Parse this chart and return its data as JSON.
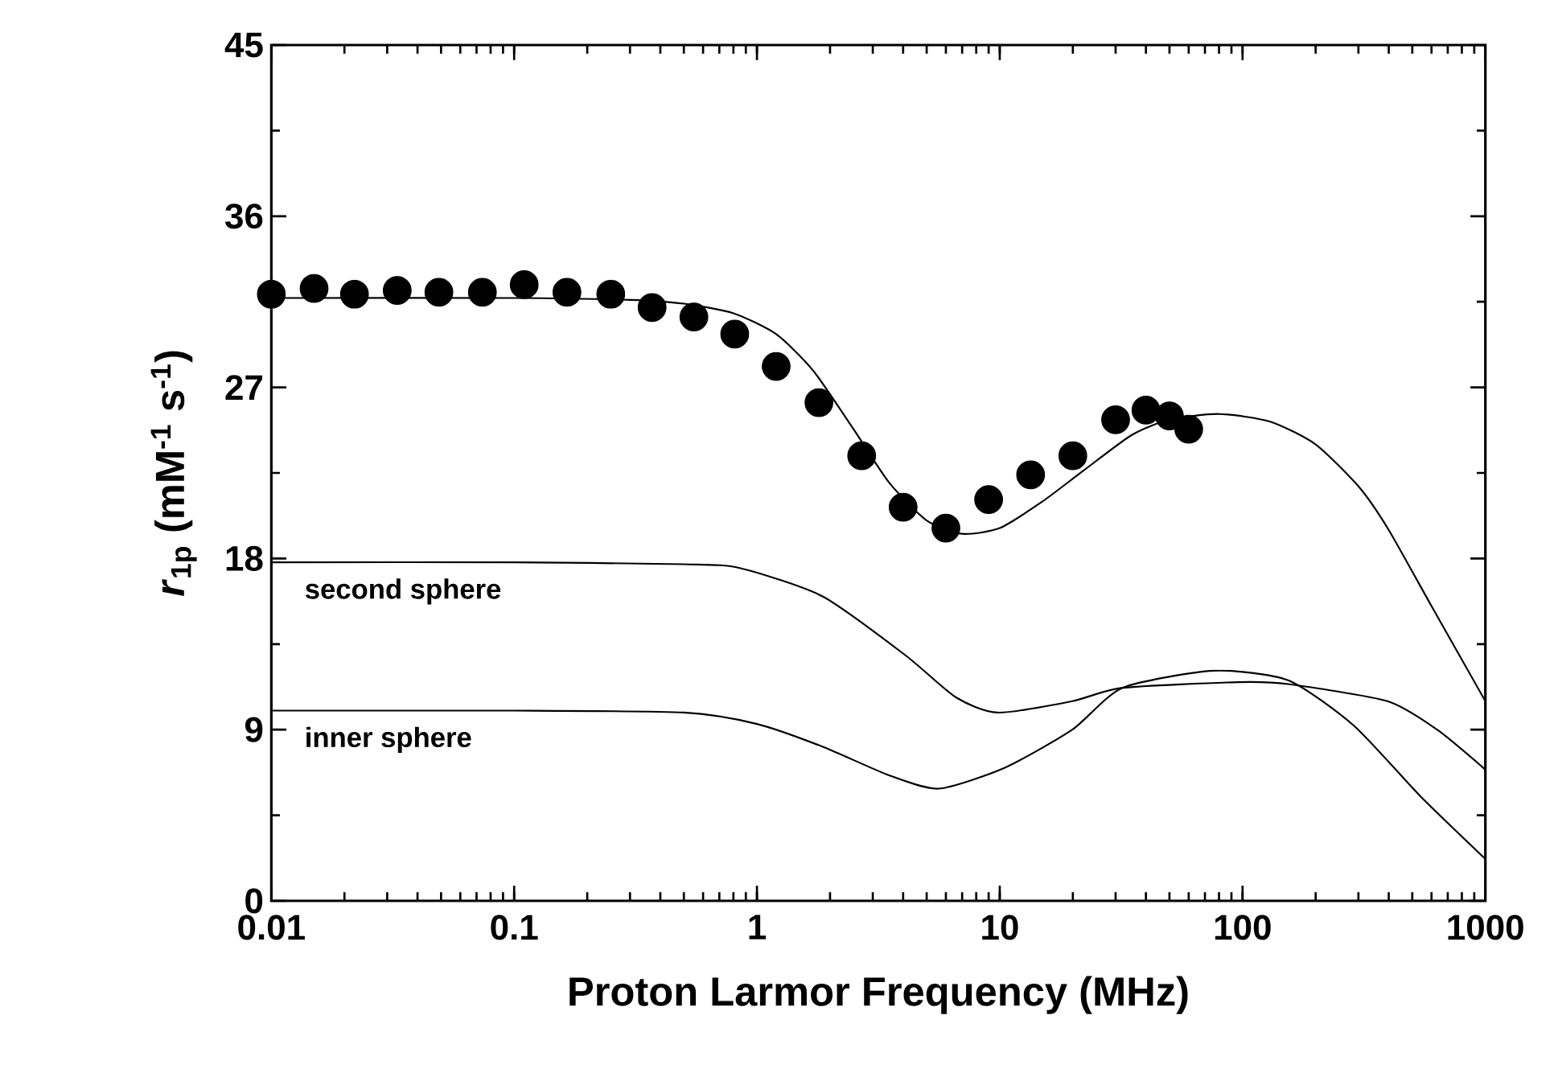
{
  "chart_data": {
    "type": "line",
    "xlabel": "Proton Larmor Frequency (MHz)",
    "ylabel": "*r*$_{1p}$ (mM$^{-1}$ s$^{-1}$)",
    "log": "x",
    "xlim": [
      0.01,
      1000
    ],
    "ylim": [
      0,
      45
    ],
    "xticks": [
      0.01,
      0.1,
      1,
      10,
      100,
      1000
    ],
    "yticks": [
      0,
      9,
      18,
      27,
      36,
      45
    ],
    "grid": false,
    "legend": false,
    "series": [
      {
        "type": "scatter",
        "marker": "circle",
        "color": "#000000",
        "x": [
          0.01,
          0.015,
          0.022,
          0.033,
          0.049,
          0.074,
          0.11,
          0.165,
          0.25,
          0.37,
          0.55,
          0.81,
          1.2,
          1.8,
          2.7,
          4.0,
          6.0,
          9.0,
          13.4,
          20,
          30,
          40,
          50,
          60
        ],
        "values": [
          31.9,
          32.2,
          31.9,
          32.1,
          32.0,
          32.0,
          32.4,
          32.0,
          31.9,
          31.2,
          30.7,
          29.8,
          28.1,
          26.2,
          23.4,
          20.7,
          19.6,
          21.1,
          22.4,
          23.4,
          25.3,
          25.8,
          25.5,
          24.8
        ]
      },
      {
        "color": "#000000",
        "x": [
          0.01,
          0.1,
          0.3,
          0.5,
          0.8,
          1.2,
          1.7,
          2.5,
          3.5,
          5,
          7,
          10,
          15,
          22,
          35,
          50,
          80,
          130,
          200,
          300,
          400,
          600,
          1000
        ],
        "values": [
          31.7,
          31.7,
          31.6,
          31.4,
          30.9,
          29.8,
          27.9,
          24.8,
          22.0,
          20.0,
          19.3,
          19.6,
          21.0,
          22.6,
          24.5,
          25.3,
          25.6,
          25.2,
          24.0,
          21.8,
          19.5,
          15.5,
          10.5
        ]
      },
      {
        "color": "#000000",
        "x": [
          0.01,
          0.1,
          0.5,
          0.85,
          1.87,
          4.1,
          6.6,
          9.8,
          19.9,
          32,
          96,
          154,
          395,
          633,
          1000
        ],
        "values": [
          17.8,
          17.8,
          17.7,
          17.5,
          16.0,
          12.9,
          10.7,
          9.9,
          10.5,
          11.2,
          11.5,
          11.4,
          10.5,
          9.0,
          6.9
        ]
      },
      {
        "color": "#000000",
        "x": [
          0.01,
          0.1,
          0.5,
          1.0,
          1.87,
          3.5,
          5.6,
          10.5,
          19.9,
          32,
          76,
          154,
          288,
          540,
          1000
        ],
        "values": [
          10.0,
          10.0,
          9.9,
          9.3,
          8.1,
          6.6,
          5.9,
          7.0,
          9.0,
          11.2,
          12.1,
          11.6,
          9.2,
          5.5,
          2.2
        ]
      }
    ],
    "annotations": [
      "second sphere",
      "inner sphere"
    ]
  }
}
